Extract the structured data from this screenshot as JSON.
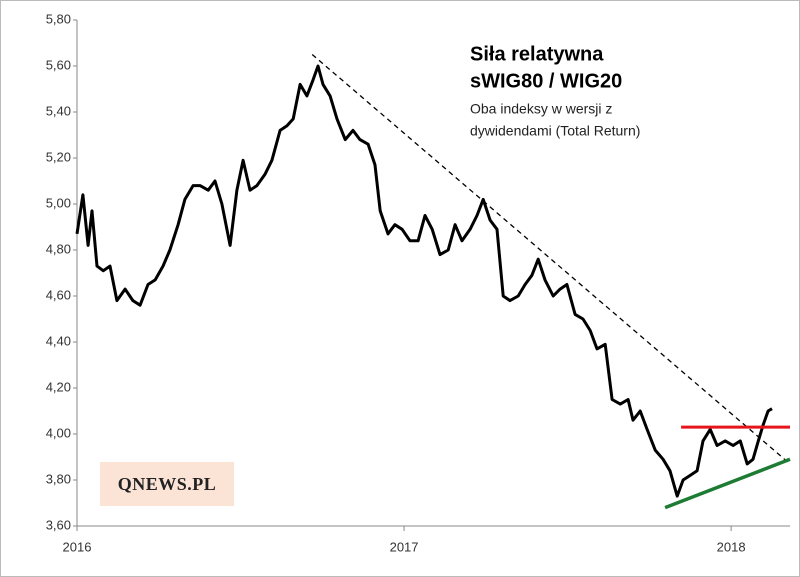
{
  "chart_data": {
    "type": "line",
    "title": "Siła relatywna",
    "title2": "sWIG80 / WIG20",
    "subtitle": "Oba indeksy w wersji z",
    "subtitle2": "dywidendami (Total Return)",
    "logo": "QNEWS.PL",
    "xlim": [
      2016,
      2018.18
    ],
    "xticks": [
      2016,
      2017,
      2018
    ],
    "ylim": [
      3.6,
      5.8
    ],
    "yticks": [
      {
        "value": 3.6,
        "label": "3,60"
      },
      {
        "value": 3.8,
        "label": "3,80"
      },
      {
        "value": 4.0,
        "label": "4,00"
      },
      {
        "value": 4.2,
        "label": "4,20"
      },
      {
        "value": 4.4,
        "label": "4,40"
      },
      {
        "value": 4.6,
        "label": "4,60"
      },
      {
        "value": 4.8,
        "label": "4,80"
      },
      {
        "value": 5.0,
        "label": "5,00"
      },
      {
        "value": 5.2,
        "label": "5,20"
      },
      {
        "value": 5.4,
        "label": "5,40"
      },
      {
        "value": 5.6,
        "label": "5,60"
      },
      {
        "value": 5.8,
        "label": "5,80"
      }
    ],
    "grid": false,
    "series": [
      {
        "color": "#000000",
        "width": 3,
        "dash": false,
        "x": [
          2016.0,
          2016.018,
          2016.034,
          2016.046,
          2016.061,
          2016.08,
          2016.101,
          2016.122,
          2016.147,
          2016.171,
          2016.193,
          2016.217,
          2016.239,
          2016.263,
          2016.284,
          2016.309,
          2016.33,
          2016.355,
          2016.376,
          2016.401,
          2016.422,
          2016.443,
          2016.468,
          2016.489,
          2016.508,
          2016.529,
          2016.55,
          2016.575,
          2016.596,
          2016.621,
          2016.642,
          2016.661,
          2016.682,
          2016.703,
          2016.722,
          2016.737,
          2016.752,
          2016.774,
          2016.795,
          2016.82,
          2016.844,
          2016.865,
          2016.89,
          2016.911,
          2016.927,
          2016.951,
          2016.972,
          2016.994,
          2017.018,
          2017.043,
          2017.064,
          2017.086,
          2017.11,
          2017.135,
          2017.156,
          2017.177,
          2017.202,
          2017.223,
          2017.242,
          2017.263,
          2017.284,
          2017.303,
          2017.324,
          2017.349,
          2017.37,
          2017.391,
          2017.41,
          2017.431,
          2017.456,
          2017.477,
          2017.498,
          2017.523,
          2017.547,
          2017.569,
          2017.59,
          2017.615,
          2017.636,
          2017.661,
          2017.685,
          2017.7,
          2017.722,
          2017.743,
          2017.768,
          2017.792,
          2017.813,
          2017.835,
          2017.853,
          2017.875,
          2017.896,
          2017.914,
          2017.936,
          2017.957,
          2017.982,
          2018.006,
          2018.028,
          2018.049,
          2018.067,
          2018.083,
          2018.098,
          2018.113,
          2018.125
        ],
        "values": [
          4.87,
          5.04,
          4.82,
          4.97,
          4.73,
          4.71,
          4.73,
          4.58,
          4.63,
          4.58,
          4.56,
          4.65,
          4.67,
          4.73,
          4.8,
          4.91,
          5.02,
          5.08,
          5.08,
          5.06,
          5.1,
          5.0,
          4.82,
          5.06,
          5.19,
          5.06,
          5.08,
          5.13,
          5.19,
          5.32,
          5.34,
          5.37,
          5.52,
          5.47,
          5.54,
          5.6,
          5.52,
          5.47,
          5.37,
          5.28,
          5.32,
          5.28,
          5.26,
          5.17,
          4.97,
          4.87,
          4.91,
          4.89,
          4.84,
          4.84,
          4.95,
          4.89,
          4.78,
          4.8,
          4.91,
          4.84,
          4.89,
          4.95,
          5.02,
          4.93,
          4.89,
          4.6,
          4.58,
          4.6,
          4.65,
          4.69,
          4.76,
          4.67,
          4.6,
          4.63,
          4.65,
          4.52,
          4.5,
          4.45,
          4.37,
          4.39,
          4.15,
          4.13,
          4.15,
          4.06,
          4.1,
          4.02,
          3.93,
          3.89,
          3.84,
          3.73,
          3.8,
          3.82,
          3.84,
          3.97,
          4.02,
          3.95,
          3.97,
          3.95,
          3.97,
          3.87,
          3.89,
          3.97,
          4.04,
          4.1,
          4.11
        ]
      },
      {
        "color": "#000000",
        "width": 1.3,
        "dash": true,
        "x": [
          2016.719,
          2018.18
        ],
        "values": [
          5.65,
          3.87
        ]
      },
      {
        "color": "#e8141c",
        "width": 3,
        "dash": false,
        "x": [
          2017.847,
          2018.18
        ],
        "values": [
          4.03,
          4.03
        ]
      },
      {
        "color": "#1e7b34",
        "width": 3.5,
        "dash": false,
        "x": [
          2017.798,
          2018.18
        ],
        "values": [
          3.68,
          3.89
        ]
      }
    ]
  }
}
